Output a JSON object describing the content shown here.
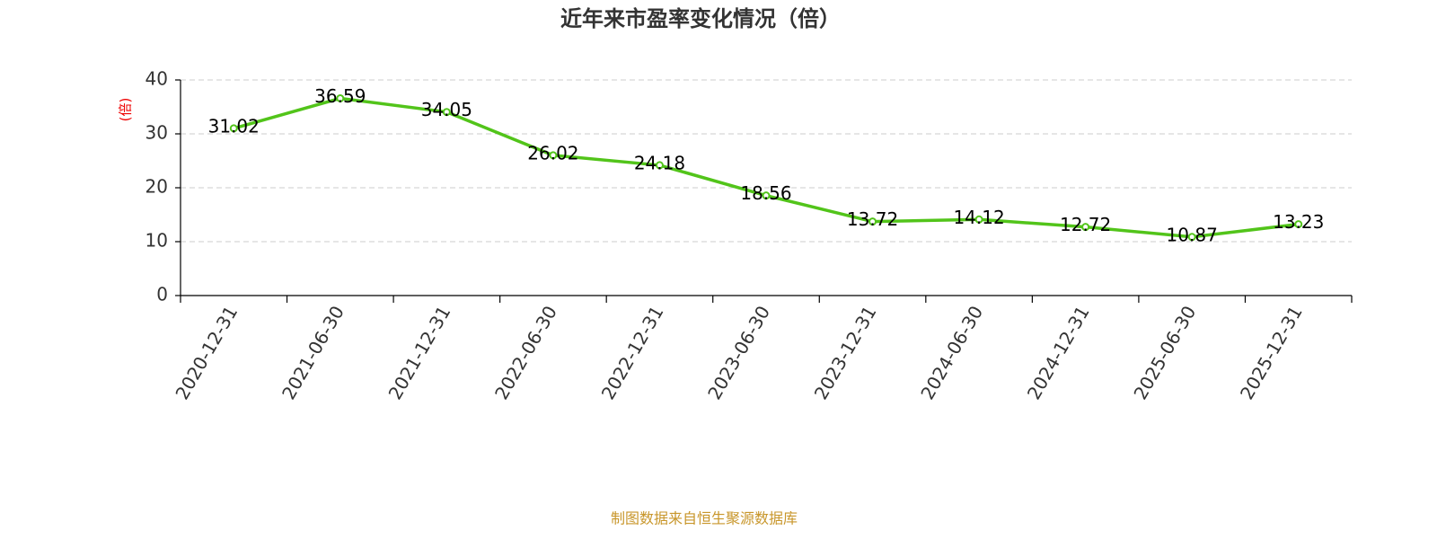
{
  "chart_data": {
    "type": "line",
    "title": "近年来市盈率变化情况（倍）",
    "y_label": "(倍)",
    "source": "制图数据来自恒生聚源数据库",
    "categories": [
      "2020-12-31",
      "2021-06-30",
      "2021-12-31",
      "2022-06-30",
      "2022-12-31",
      "2023-06-30",
      "2023-12-31",
      "2024-06-30",
      "2024-12-31",
      "2025-06-30",
      "2025-12-31"
    ],
    "values": [
      31.02,
      36.59,
      34.05,
      26.02,
      24.18,
      18.56,
      13.72,
      14.12,
      12.72,
      10.87,
      13.23
    ],
    "color": "#52c41a",
    "ylim": [
      0,
      40
    ],
    "yticks": [
      0,
      10,
      20,
      30,
      40
    ],
    "grid": true
  }
}
